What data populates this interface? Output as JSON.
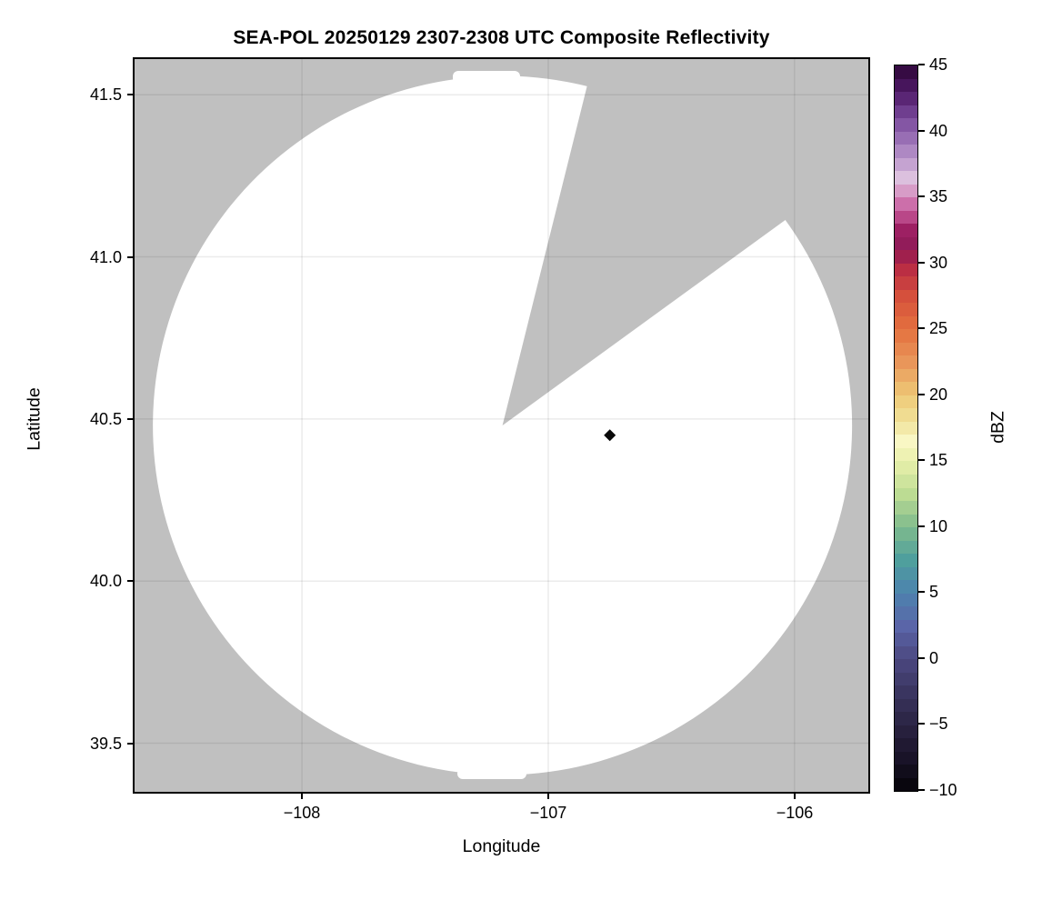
{
  "figure": {
    "background": "#ffffff"
  },
  "chart_data": {
    "type": "heatmap",
    "title": "SEA-POL 20250129 2307-2308 UTC Composite Reflectivity",
    "xlabel": "Longitude",
    "ylabel": "Latitude",
    "xlim": [
      -108.68,
      -105.7
    ],
    "ylim": [
      39.35,
      41.61
    ],
    "xticks": [
      -108,
      -107,
      -106
    ],
    "xtick_labels": [
      "−108",
      "−107",
      "−106"
    ],
    "yticks": [
      41.5,
      41.0,
      40.5,
      40.0,
      39.5
    ],
    "ytick_labels": [
      "41.5",
      "41.0",
      "40.5",
      "40.0",
      "39.5"
    ],
    "grid": true,
    "grid_color": "rgba(0,0,0,0.08)",
    "no_data_color": "#c0c0c0",
    "coverage_color": "#ffffff",
    "coverage": {
      "center_lon": -107.186,
      "center_lat": 40.48,
      "radius_deg_lon": 1.42,
      "blocked_sector_azimuth_deg": {
        "from": 14,
        "to": 54
      }
    },
    "points": [
      {
        "lon": -106.75,
        "lat": 40.45,
        "marker": "diamond",
        "color": "#0a0a0a"
      }
    ],
    "colorbar": {
      "label": "dBZ",
      "min": -10,
      "max": 45,
      "band_step_dbz": 1,
      "tick_values": [
        45,
        40,
        35,
        30,
        25,
        20,
        15,
        10,
        5,
        0,
        -5,
        -10
      ],
      "tick_labels": [
        "45",
        "40",
        "35",
        "30",
        "25",
        "20",
        "15",
        "10",
        "5",
        "0",
        "−5",
        "−10"
      ],
      "stops": [
        [
          45,
          "#2d0636"
        ],
        [
          43,
          "#4f1a68"
        ],
        [
          41,
          "#7a4a9c"
        ],
        [
          40,
          "#8d61ac"
        ],
        [
          38,
          "#b995cb"
        ],
        [
          36.5,
          "#dcc0de"
        ],
        [
          36,
          "#ddb4d5"
        ],
        [
          35,
          "#d083b8"
        ],
        [
          34,
          "#c75a9b"
        ],
        [
          32.5,
          "#9d2063"
        ],
        [
          31,
          "#8c1a55"
        ],
        [
          30,
          "#b42545"
        ],
        [
          27.5,
          "#d5503c"
        ],
        [
          25,
          "#e4703f"
        ],
        [
          22.5,
          "#e9965a"
        ],
        [
          20,
          "#eec876"
        ],
        [
          18,
          "#f0e29a"
        ],
        [
          16.5,
          "#f9f7c4"
        ],
        [
          15,
          "#e9f0ab"
        ],
        [
          12.5,
          "#bcdc93"
        ],
        [
          10,
          "#7fba8d"
        ],
        [
          7.5,
          "#4f9f9d"
        ],
        [
          5,
          "#4d82ae"
        ],
        [
          2.5,
          "#5a65a8"
        ],
        [
          0,
          "#4c4880"
        ],
        [
          -2.5,
          "#3a3560"
        ],
        [
          -5,
          "#2a2342"
        ],
        [
          -7.5,
          "#191328"
        ],
        [
          -10,
          "#050308"
        ]
      ]
    }
  }
}
